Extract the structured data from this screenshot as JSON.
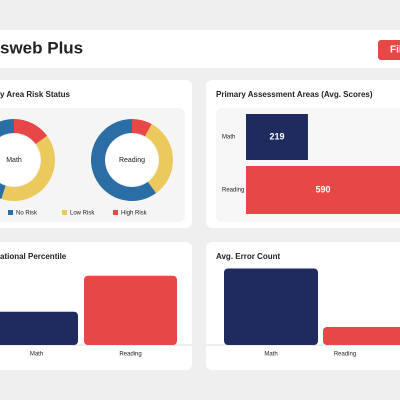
{
  "header": {
    "title": "sweb Plus",
    "button": "Fil"
  },
  "chart_data": [
    {
      "type": "donut",
      "title": "y Area Risk Status",
      "categories": [
        "No Risk",
        "Low Risk",
        "High Risk"
      ],
      "colors": [
        "#2b6ea6",
        "#ecc95c",
        "#e84747"
      ],
      "series": [
        {
          "name": "Math",
          "values": [
            45,
            40,
            15
          ]
        },
        {
          "name": "Reading",
          "values": [
            60,
            32,
            8
          ]
        }
      ]
    },
    {
      "type": "hbar",
      "title": "Primary Assessment Areas (Avg. Scores)",
      "categories": [
        "Math",
        "Reading"
      ],
      "values": [
        219,
        590
      ],
      "colors": [
        "#1f2a5e",
        "#e84747"
      ],
      "xlim": [
        0,
        700
      ]
    },
    {
      "type": "bar",
      "title": "ational Percentile",
      "categories": [
        "Math",
        "Reading"
      ],
      "values": [
        37,
        77
      ],
      "colors": [
        "#1f2a5e",
        "#e84747"
      ],
      "ylim": [
        0,
        100
      ]
    },
    {
      "type": "bar",
      "title": "Avg. Error Count",
      "categories": [
        "Math",
        "Reading"
      ],
      "values": [
        8.5,
        2
      ],
      "colors": [
        "#1f2a5e",
        "#e84747"
      ],
      "ylim": [
        0,
        10
      ]
    }
  ]
}
